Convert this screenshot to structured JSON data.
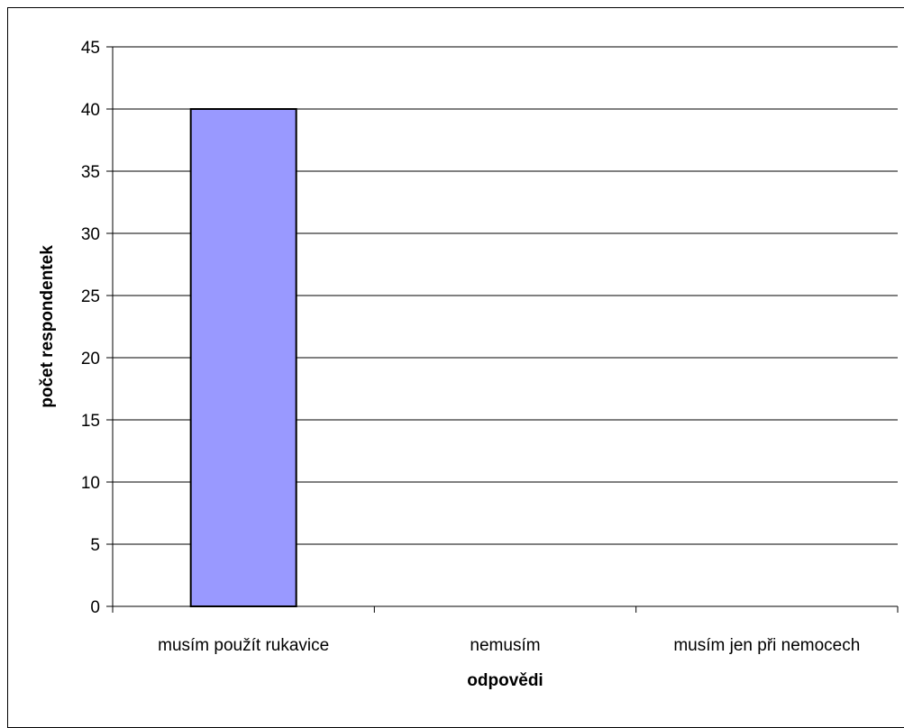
{
  "chart_data": {
    "type": "bar",
    "title": "",
    "xlabel": "odpovědi",
    "ylabel": "počet respondentek",
    "categories": [
      "musím použít rukavice",
      "nemusím",
      "musím jen při nemocech"
    ],
    "values": [
      40,
      0,
      0
    ],
    "ylim": [
      0,
      45
    ],
    "yticks": [
      "0",
      "5",
      "10",
      "15",
      "20",
      "25",
      "30",
      "35",
      "40",
      "45"
    ],
    "grid": true,
    "legend": "none"
  },
  "colors": {
    "bar_fill": "#9999ff",
    "bar_stroke": "#000000",
    "gridline": "#000000",
    "background": "#ffffff"
  }
}
